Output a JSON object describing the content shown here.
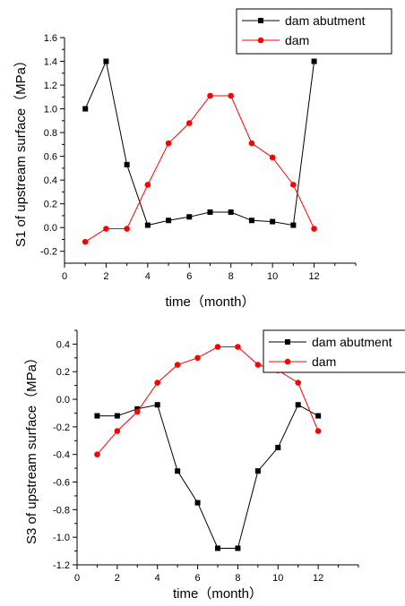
{
  "chart_data": [
    {
      "type": "line",
      "title": "",
      "xlabel": "time（month）",
      "ylabel": "S1 of upstream surface（MPa）",
      "xlim": [
        0,
        14
      ],
      "ylim": [
        -0.3,
        1.6
      ],
      "xticks": [
        0,
        2,
        4,
        6,
        8,
        10,
        12
      ],
      "yticks": [
        -0.2,
        0.0,
        0.2,
        0.4,
        0.6,
        0.8,
        1.0,
        1.2,
        1.4,
        1.6
      ],
      "ytick_labels": [
        "-0.2",
        "0.0",
        "0.2",
        "0.4",
        "0.6",
        "0.8",
        "1.0",
        "1.2",
        "1.4",
        "1.6"
      ],
      "legend_position": "top-right",
      "x": [
        1,
        2,
        3,
        4,
        5,
        6,
        7,
        8,
        9,
        10,
        11,
        12
      ],
      "series": [
        {
          "name": "dam abutment",
          "color": "#000000",
          "marker": "square",
          "values": [
            1.0,
            1.4,
            0.53,
            0.02,
            0.06,
            0.09,
            0.13,
            0.13,
            0.06,
            0.05,
            0.02,
            1.4
          ]
        },
        {
          "name": "dam",
          "color": "#ff0000",
          "marker": "circle",
          "values": [
            -0.12,
            -0.01,
            -0.01,
            0.36,
            0.71,
            0.88,
            1.11,
            1.11,
            0.71,
            0.59,
            0.36,
            -0.01
          ]
        }
      ]
    },
    {
      "type": "line",
      "title": "",
      "xlabel": "time（month）",
      "ylabel": "S3 of upstream surface（MPa）",
      "xlim": [
        0,
        14
      ],
      "ylim": [
        -1.2,
        0.5
      ],
      "xticks": [
        0,
        2,
        4,
        6,
        8,
        10,
        12
      ],
      "yticks": [
        -1.2,
        -1.0,
        -0.8,
        -0.6,
        -0.4,
        -0.2,
        0.0,
        0.2,
        0.4
      ],
      "ytick_labels": [
        "-1.2",
        "-1.0",
        "-0.8",
        "-0.6",
        "-0.4",
        "-0.2",
        "0.0",
        "0.2",
        "0.4"
      ],
      "legend_position": "top-right",
      "x": [
        1,
        2,
        3,
        4,
        5,
        6,
        7,
        8,
        9,
        10,
        11,
        12
      ],
      "series": [
        {
          "name": "dam abutment",
          "color": "#000000",
          "marker": "square",
          "values": [
            -0.12,
            -0.12,
            -0.07,
            -0.04,
            -0.52,
            -0.75,
            -1.08,
            -1.08,
            -0.52,
            -0.35,
            -0.04,
            -0.12
          ]
        },
        {
          "name": "dam",
          "color": "#ff0000",
          "marker": "circle",
          "values": [
            -0.4,
            -0.23,
            -0.09,
            0.12,
            0.25,
            0.3,
            0.38,
            0.38,
            0.25,
            0.21,
            0.12,
            -0.23
          ]
        }
      ]
    }
  ]
}
